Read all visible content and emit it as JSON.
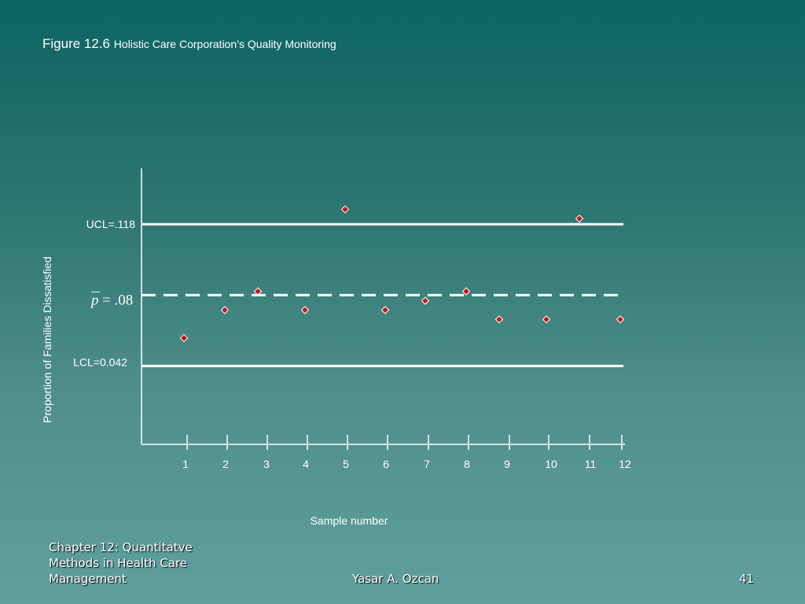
{
  "slide": {
    "figure_label": "Figure 12.6",
    "figure_title": "Holistic Care Corporation’s Quality Monitoring",
    "footer_left": "Chapter 12: Quantitatve Methods in Health Care Management",
    "footer_center": "Yasar A. Ozcan",
    "page_number": "41"
  },
  "colors": {
    "marker": "#cc1111",
    "lines": "#ffffff"
  },
  "chart_data": {
    "type": "scatter",
    "title": "",
    "xlabel": "Sample number",
    "ylabel": "Proportion of Families Dissatisfied",
    "x": [
      1,
      2,
      3,
      4,
      5,
      6,
      7,
      8,
      9,
      10,
      11,
      12
    ],
    "values": [
      0.057,
      0.072,
      0.082,
      0.072,
      0.126,
      0.072,
      0.077,
      0.082,
      0.067,
      0.067,
      0.121,
      0.067
    ],
    "tick_labels": [
      "1",
      "2",
      "3",
      "4",
      "5",
      "6",
      "7",
      "8",
      "9",
      "10",
      "11",
      "12"
    ],
    "ylim": [
      0.0,
      0.148
    ],
    "grid": false,
    "control_lines": {
      "ucl": {
        "value": 0.118,
        "label": "UCL=.118"
      },
      "center": {
        "value": 0.08,
        "label": "= .08",
        "symbol": "p"
      },
      "lcl": {
        "value": 0.042,
        "label": "LCL=0.042"
      }
    }
  }
}
